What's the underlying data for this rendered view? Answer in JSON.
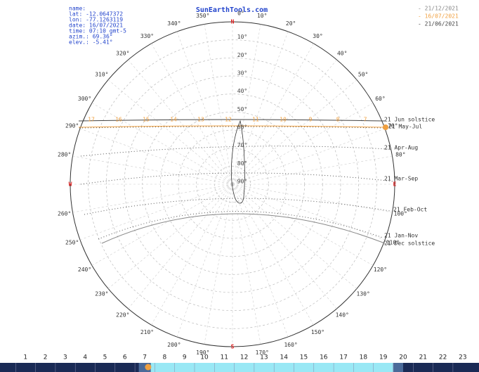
{
  "title": "SunEarthTools.com",
  "info": [
    "name:",
    "lat: -12.0647372",
    "lon: -77.1263119",
    "date: 16/07/2021",
    "time: 07:10 gmt-5",
    "azim.: 69.36°",
    "elev.: -5.41°"
  ],
  "legend": [
    {
      "text": "- 21/12/2021",
      "color": "#888888"
    },
    {
      "text": "- 16/07/2021",
      "color": "#f0a040"
    },
    {
      "text": "- 21/06/2021",
      "color": "#444444"
    }
  ],
  "cardinals": {
    "north": "N",
    "east": "E",
    "south": "S",
    "west": "W"
  },
  "azimuth_labels": [
    "0°",
    "10°",
    "20°",
    "30°",
    "40°",
    "50°",
    "60°",
    "70°",
    "80°",
    null,
    "100°",
    "110°",
    "120°",
    "130°",
    "140°",
    "150°",
    "160°",
    "170°",
    null,
    "190°",
    "200°",
    "210°",
    "220°",
    "230°",
    "240°",
    "250°",
    "260°",
    null,
    "280°",
    "290°",
    "300°",
    "310°",
    "320°",
    "330°",
    "340°",
    "350°"
  ],
  "elevation_labels": [
    "10°",
    "20°",
    "30°",
    "40°",
    "50°",
    "60°",
    "70°",
    "80°",
    "90°"
  ],
  "curve_labels": [
    "21 Jun  solstice",
    "21 May-Jul",
    "21 Apr-Aug",
    "21 Mar-Sep",
    "21 Feb-Oct",
    "21 Jan-Nov",
    "21 Dec  solstice"
  ],
  "hour_labels": [
    "17",
    "16",
    "15",
    "14",
    "13",
    "12",
    "11",
    "10",
    "9",
    "8",
    "7"
  ],
  "hour_bar": [
    "1",
    "2",
    "3",
    "4",
    "5",
    "6",
    "7",
    "8",
    "9",
    "10",
    "11",
    "12",
    "13",
    "14",
    "15",
    "16",
    "17",
    "18",
    "19",
    "20",
    "21",
    "22",
    "23"
  ]
}
